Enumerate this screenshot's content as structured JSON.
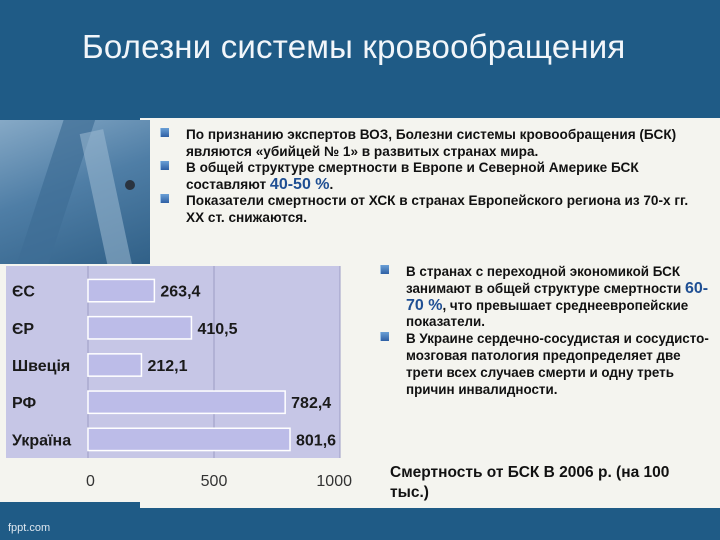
{
  "slide": {
    "title": "Болезни системы кровообращения",
    "footer": "fppt.com"
  },
  "bullets_top": [
    {
      "text": "По признанию экспертов ВОЗ, Болезни системы кровообращения (БСК) являются «убийцей № 1» в развитых странах мира."
    },
    {
      "text_before": "В общей структуре смертности в Европе и Северной Америке БСК составляют ",
      "highlight": "40-50 %",
      "text_after": "."
    },
    {
      "text": "Показатели смертности от ХСК в странах Европейского региона из 70-х гг. ХХ ст. снижаются."
    }
  ],
  "bullets_right": [
    {
      "text_before": "В странах с переходной экономикой БСК занимают в общей структуре смертности ",
      "highlight": "60-70 %",
      "text_after": ", что превышает среднеевропейские показатели."
    },
    {
      "text": "В Украине сердечно-сосудистая и сосудисто-мозговая патология предопределяет две трети всех случаев смерти и одну треть причин инвалидности."
    }
  ],
  "caption": "Смертность от БСК В 2006 р. (на 100 тыс.)",
  "colors": {
    "background": "#1f5b86",
    "panel": "#f4f4ef",
    "chart_bg": "#c6c6e6",
    "bar": "#bdbde6",
    "highlight": "#1f4f93"
  },
  "chart_data": {
    "type": "bar",
    "orientation": "horizontal",
    "categories": [
      "ЄС",
      "ЄР",
      "Швеція",
      "РФ",
      "Україна"
    ],
    "values": [
      263.4,
      410.5,
      212.1,
      782.4,
      801.6
    ],
    "value_labels": [
      "263,4",
      "410,5",
      "212,1",
      "782,4",
      "801,6"
    ],
    "xlim": [
      0,
      1000
    ],
    "ticks": [
      0,
      500,
      1000
    ],
    "tick_labels": [
      "0",
      "500",
      "1000"
    ],
    "grid": true
  }
}
